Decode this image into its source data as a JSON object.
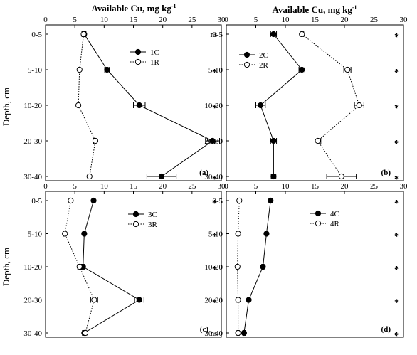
{
  "figure": {
    "x_title": "Available Cu, mg kg",
    "x_title_sup": "-1",
    "y_title": "Depth, cm"
  },
  "chart_data": [
    {
      "type": "line",
      "panel_label": "(a)",
      "xlim": [
        0,
        30
      ],
      "x_ticks": [
        0,
        5,
        10,
        15,
        20,
        25,
        30
      ],
      "depths": [
        "0-5",
        "5-10",
        "10-20",
        "20-30",
        "30-40"
      ],
      "series": [
        {
          "name": "1C",
          "style": "solid",
          "marker": "filled",
          "values": [
            6.6,
            10.5,
            16.0,
            28.5,
            19.8
          ],
          "errors": [
            0.3,
            0.4,
            1.0,
            1.2,
            2.5
          ]
        },
        {
          "name": "1R",
          "style": "dotted",
          "marker": "open",
          "values": [
            6.5,
            5.8,
            5.6,
            8.5,
            7.5
          ],
          "errors": [
            0.3,
            0.1,
            0.1,
            0.3,
            0.2
          ]
        }
      ],
      "significance": [
        "ns",
        "*",
        "*",
        "*",
        "*"
      ],
      "legend": "top-right"
    },
    {
      "type": "line",
      "panel_label": "(b)",
      "xlim": [
        0,
        30
      ],
      "x_ticks": [
        0,
        5,
        10,
        15,
        20,
        25,
        30
      ],
      "depths": [
        "0-5",
        "5-10",
        "10-20",
        "20-30",
        "30-40"
      ],
      "series": [
        {
          "name": "2C",
          "style": "solid",
          "marker": "filled",
          "values": [
            8.0,
            12.8,
            5.8,
            8.0,
            8.0
          ],
          "errors": [
            0.5,
            0.5,
            0.8,
            0.5,
            0.4
          ]
        },
        {
          "name": "2R",
          "style": "dotted",
          "marker": "open",
          "values": [
            12.8,
            20.5,
            22.5,
            15.5,
            19.5
          ],
          "errors": [
            0.3,
            0.6,
            0.8,
            0.5,
            2.5
          ]
        }
      ],
      "significance": [
        "*",
        "*",
        "*",
        "*",
        "*"
      ],
      "legend": "top-left"
    },
    {
      "type": "line",
      "panel_label": "(c)",
      "xlim": [
        0,
        30
      ],
      "x_ticks": [
        0,
        5,
        10,
        15,
        20,
        25,
        30
      ],
      "depths": [
        "0-5",
        "5-10",
        "10-20",
        "20-30",
        "30-40"
      ],
      "series": [
        {
          "name": "3C",
          "style": "solid",
          "marker": "filled",
          "values": [
            8.2,
            6.6,
            6.4,
            16.0,
            6.6
          ],
          "errors": [
            0.3,
            0.2,
            0.2,
            0.8,
            0.3
          ]
        },
        {
          "name": "3R",
          "style": "dotted",
          "marker": "open",
          "values": [
            4.3,
            3.3,
            5.8,
            8.3,
            6.8
          ],
          "errors": [
            0.2,
            0.2,
            0.3,
            0.6,
            0.4
          ]
        }
      ],
      "significance": [
        "*",
        "*",
        "*",
        "*",
        "ns"
      ],
      "legend": "top-right"
    },
    {
      "type": "line",
      "panel_label": "(d)",
      "xlim": [
        0,
        30
      ],
      "x_ticks": [
        0,
        5,
        10,
        15,
        20,
        25,
        30
      ],
      "depths": [
        "0-5",
        "5-10",
        "10-20",
        "20-30",
        "30-40"
      ],
      "series": [
        {
          "name": "4C",
          "style": "solid",
          "marker": "filled",
          "values": [
            7.5,
            6.8,
            6.2,
            3.8,
            3.0
          ],
          "errors": [
            0.2,
            0.2,
            0.2,
            0.2,
            0.2
          ]
        },
        {
          "name": "4R",
          "style": "dotted",
          "marker": "open",
          "values": [
            2.2,
            2.0,
            1.9,
            2.0,
            2.0
          ],
          "errors": [
            0.1,
            0.1,
            0.1,
            0.2,
            0.2
          ]
        }
      ],
      "significance": [
        "*",
        "*",
        "*",
        "*",
        "*"
      ],
      "legend": "top-right"
    }
  ]
}
